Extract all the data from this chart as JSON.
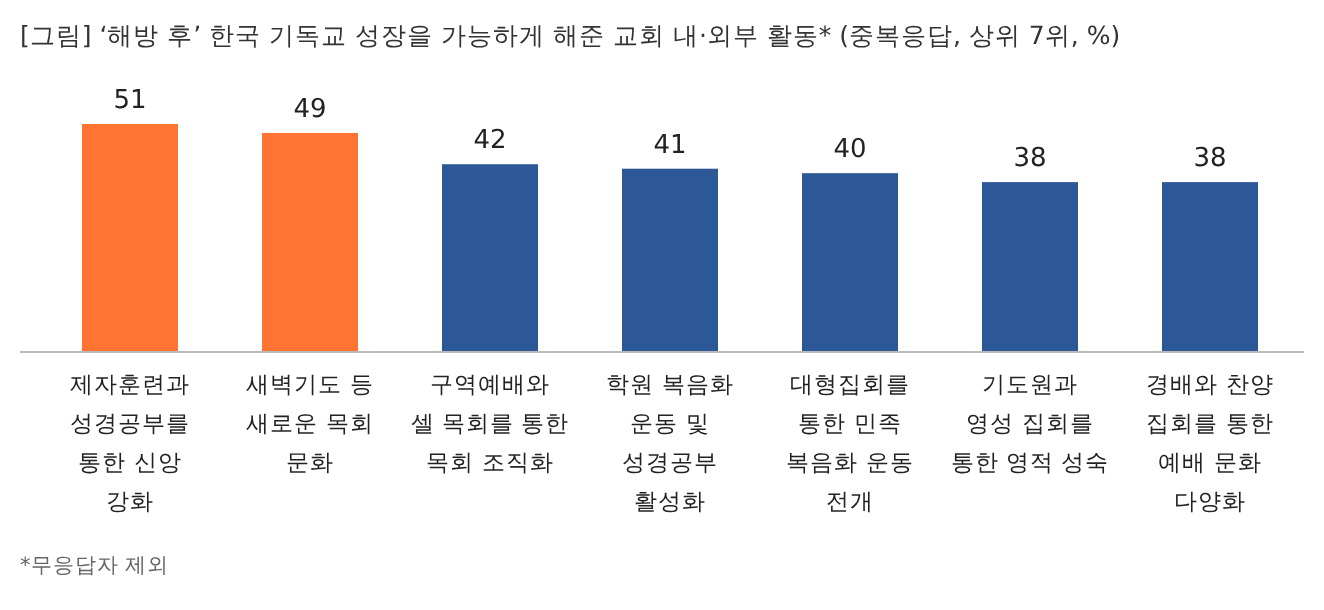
{
  "chart_data": {
    "type": "bar",
    "title": "[그림] ‘해방 후’ 한국 기독교 성장을 가능하게 해준 교회 내·외부 활동* (중복응답, 상위 7위, %)",
    "categories": [
      "제자훈련과\n성경공부를\n통한 신앙\n강화",
      "새벽기도 등\n새로운 목회\n문화",
      "구역예배와\n셀 목회를 통한\n목회 조직화",
      "학원 복음화\n운동 및\n성경공부\n활성화",
      "대형집회를\n통한 민족\n복음화 운동\n전개",
      "기도원과\n영성 집회를\n통한 영적 성숙",
      "경배와 찬양\n집회를 통한\n예배 문화\n다양화"
    ],
    "values": [
      51,
      49,
      42,
      41,
      40,
      38,
      38
    ],
    "colors": [
      "#ff7433",
      "#ff7433",
      "#2d5898",
      "#2d5898",
      "#2d5898",
      "#2d5898",
      "#2d5898"
    ],
    "data_labels": true,
    "annotations": [
      "*무응답자 제외"
    ]
  }
}
